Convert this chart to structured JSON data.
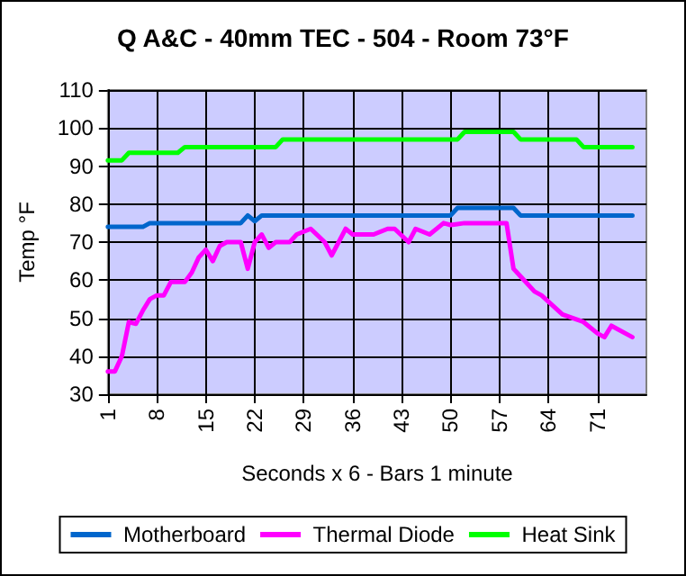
{
  "chart_data": {
    "type": "line",
    "title": "Q A&C - 40mm TEC - 504 - Room 73°F",
    "xlabel": "Seconds x 6 - Bars 1 minute",
    "ylabel": "Temp °F",
    "xlim": [
      1,
      78
    ],
    "xticks": [
      1,
      8,
      15,
      22,
      29,
      36,
      43,
      50,
      57,
      64,
      71
    ],
    "ylim": [
      30,
      110
    ],
    "yticks": [
      30,
      40,
      50,
      60,
      70,
      80,
      90,
      100,
      110
    ],
    "grid": true,
    "legend": "bottom",
    "marker": "none",
    "line_style": "solid",
    "series": [
      {
        "name": "Motherboard",
        "color": "#0066cc",
        "x": [
          1,
          6,
          7,
          20,
          21,
          22,
          23,
          50,
          51,
          59,
          60,
          76
        ],
        "values": [
          74,
          74,
          75,
          75,
          77,
          75.5,
          77,
          77,
          79,
          79,
          77,
          77
        ]
      },
      {
        "name": "Thermal Diode",
        "color": "#ff00ff",
        "x": [
          1,
          2,
          3,
          4,
          5,
          6,
          7,
          8,
          9,
          10,
          12,
          13,
          14,
          15,
          16,
          17,
          18,
          20,
          21,
          22,
          23,
          24,
          25,
          27,
          28,
          30,
          32,
          33,
          35,
          36,
          39,
          41,
          42,
          44,
          45,
          47,
          49,
          50,
          52,
          58,
          59,
          60,
          62,
          63,
          66,
          69,
          71,
          72,
          73,
          76
        ],
        "values": [
          36,
          36,
          40,
          49,
          48.5,
          52,
          55,
          56,
          56,
          59.5,
          59.5,
          62,
          66,
          68,
          65,
          69,
          70,
          70,
          63,
          70,
          72,
          68.5,
          70,
          70,
          72,
          73.5,
          70,
          66.5,
          73.5,
          72,
          72,
          73.5,
          73.5,
          70,
          73.5,
          72,
          75,
          74.5,
          75,
          75,
          63,
          61,
          57,
          56,
          51,
          49,
          46,
          45,
          48,
          45
        ]
      },
      {
        "name": "Heat Sink",
        "color": "#00ff00",
        "x": [
          1,
          3,
          4,
          11,
          12,
          25,
          26,
          51,
          52,
          59,
          60,
          68,
          69,
          76
        ],
        "values": [
          91.5,
          91.5,
          93.5,
          93.5,
          95,
          95,
          97,
          97,
          99,
          99,
          97,
          97,
          95,
          95
        ]
      }
    ]
  }
}
